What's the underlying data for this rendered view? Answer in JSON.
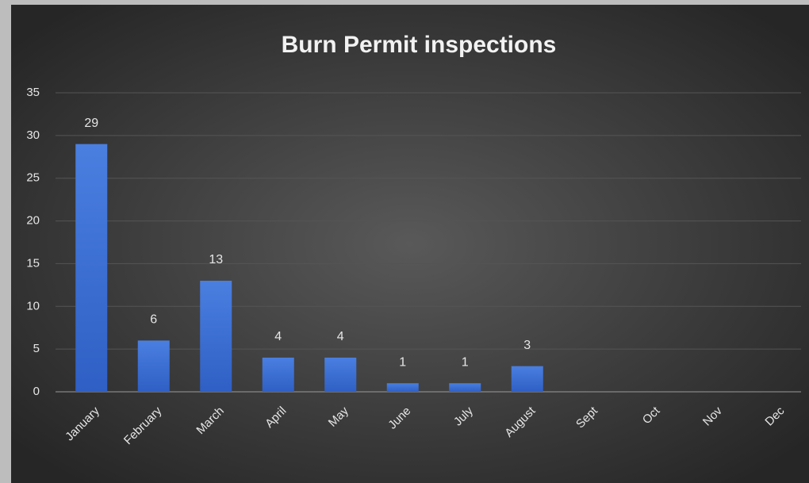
{
  "chart_data": {
    "type": "bar",
    "title": "Burn Permit inspections",
    "categories": [
      "January",
      "February",
      "March",
      "April",
      "May",
      "June",
      "July",
      "August",
      "Sept",
      "Oct",
      "Nov",
      "Dec"
    ],
    "values": [
      29,
      6,
      13,
      4,
      4,
      1,
      1,
      3,
      null,
      null,
      null,
      null
    ],
    "color": "#3f70d6",
    "ylim": [
      0,
      35
    ],
    "yticks": [
      0,
      5,
      10,
      15,
      20,
      25,
      30,
      35
    ],
    "grid": true
  }
}
